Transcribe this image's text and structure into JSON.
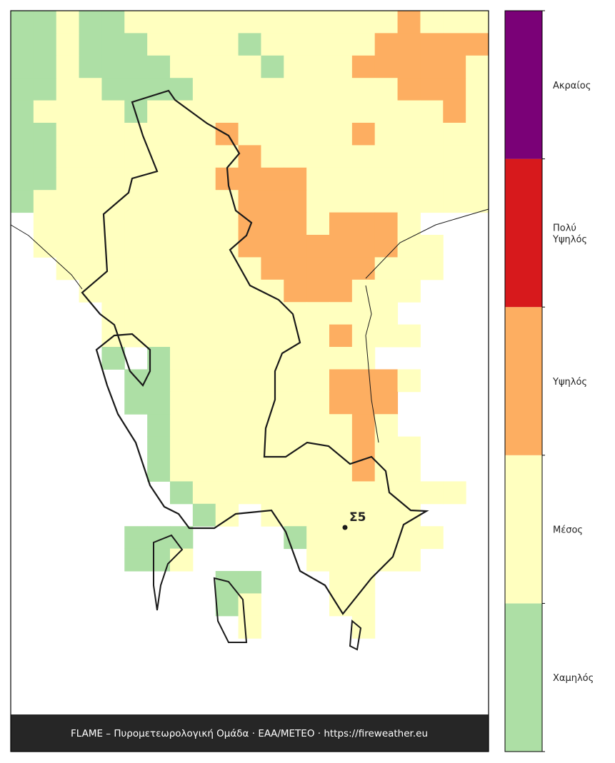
{
  "map": {
    "grid": [
      "001001111111111112111",
      "001000111101111122222",
      "001000011110111222221",
      "001100001111111112221",
      "011110111111111111121",
      "001111111211111211111",
      "001111111121111111111",
      "001111111222211111111",
      "011111111122211111111",
      ".11111111122212221...",
      ".111111111222222211..",
      "..11111111122222111..",
      "...111111111222111...",
      "....1111111111111....",
      "....11111111112111...",
      "....0.0111111111.....",
      ".....0011111112221...",
      ".....001111111222....",
      "......01111111121....",
      "......011111111211...",
      "......011111111211...",
      ".......0111111111111.",
      "........01.1111111...",
      ".....000....0111111..",
      ".....001.....11111...",
      ".........00...11.....",
      ".........01...11.....",
      "..........1....1....."
    ],
    "levels": [
      {
        "label": "Χαμηλός",
        "color": "#addfa5"
      },
      {
        "label": "Μέσος",
        "color": "#ffffbf"
      },
      {
        "label": "Υψηλός",
        "color": "#fdae61"
      },
      {
        "label": "Πολύ\nΥψηλός",
        "color": "#d7191c"
      },
      {
        "label": "Ακραίος",
        "color": "#7a0177"
      }
    ]
  },
  "station": {
    "label": "Σ5"
  },
  "footer": "FLAME – Πυρομετεωρολογική Ομάδα · ΕΑΑ/METEO · https://fireweather.eu"
}
